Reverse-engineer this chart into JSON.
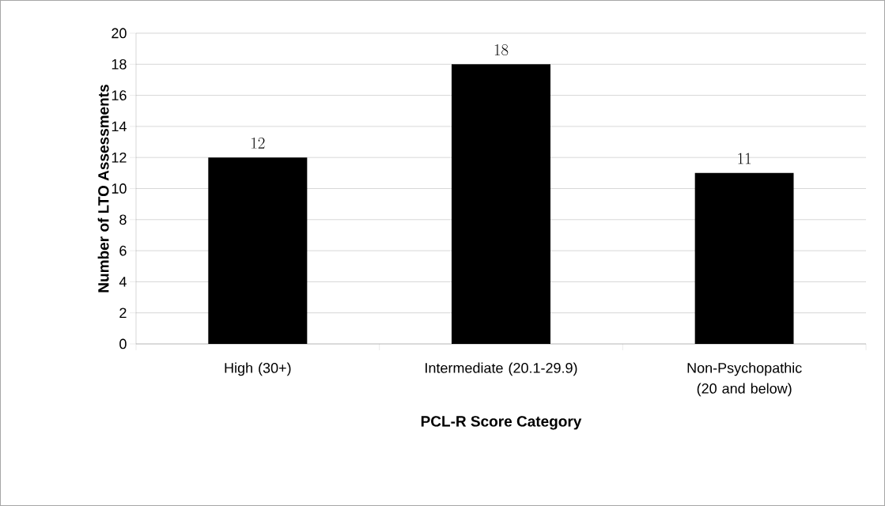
{
  "chart_data": {
    "type": "bar",
    "categories": [
      "High (30+)",
      "Intermediate (20.1-29.9)",
      "Non-Psychopathic (20 and below)"
    ],
    "values": [
      12,
      18,
      11
    ],
    "color": "#000000",
    "xlabel": "PCL-R Score Category",
    "ylabel": "Number of LTO Assessments",
    "ylim": [
      0,
      20
    ],
    "yticks": [
      0,
      2,
      4,
      6,
      8,
      10,
      12,
      14,
      16,
      18,
      20
    ],
    "grid": "y",
    "data_labels": true
  }
}
